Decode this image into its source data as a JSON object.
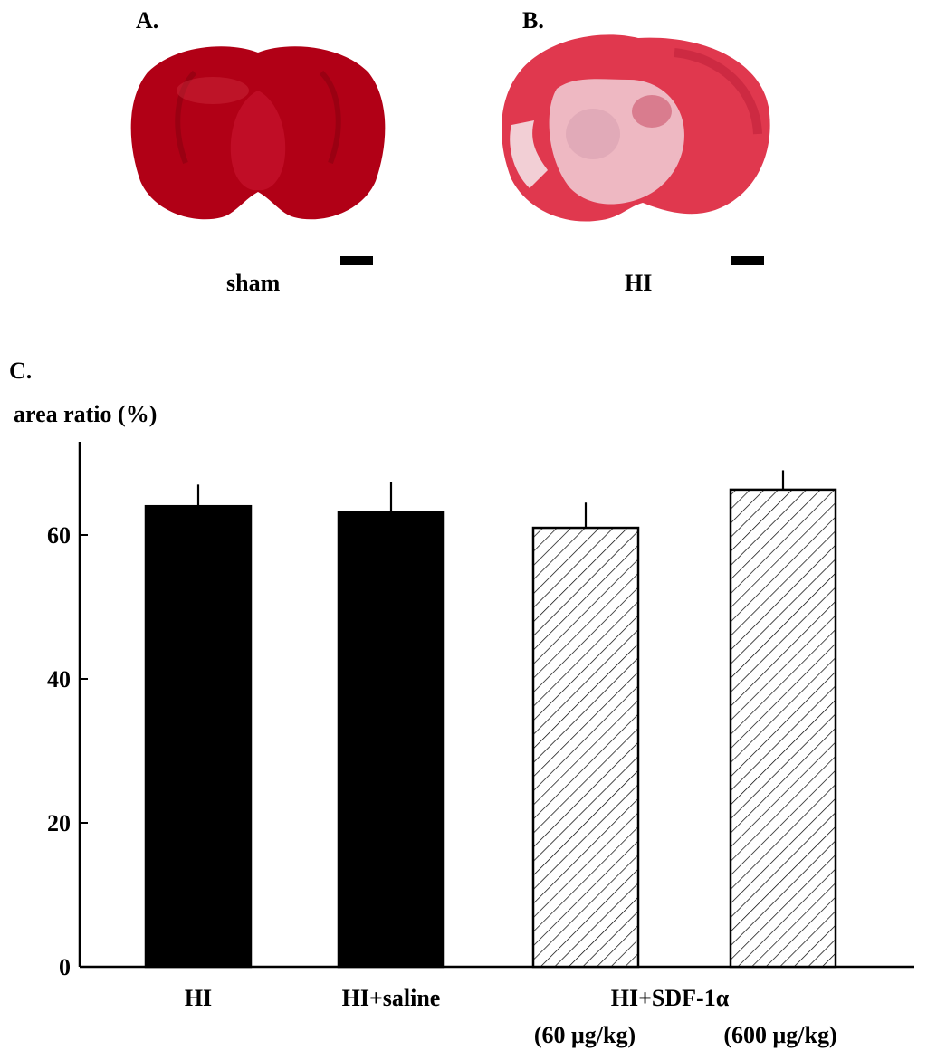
{
  "panels": {
    "a": {
      "letter": "A.",
      "caption": "sham"
    },
    "b": {
      "letter": "B.",
      "caption": "HI"
    },
    "c": {
      "letter": "C."
    }
  },
  "colors": {
    "sham_tissue": "#b10016",
    "hi_tissue": "#e0384e",
    "hi_infarct": "#efc6cf",
    "bar_solid": "#000000",
    "bar_hatched_fill": "#ffffff"
  },
  "chart_data": {
    "type": "bar",
    "ylabel": "area ratio (%)",
    "xlabel": "",
    "ylim": [
      0,
      70
    ],
    "yticks": [
      0,
      20,
      40,
      60
    ],
    "grid": false,
    "categories": [
      "HI",
      "HI+saline",
      "HI+SDF-1α (60 μg/kg)",
      "HI+SDF-1α (600 μg/kg)"
    ],
    "x_tick_labels": [
      {
        "text": "HI"
      },
      {
        "text": "HI+saline"
      },
      {
        "text": "HI+SDF-1α"
      },
      {
        "text": "(60 μg/kg)"
      },
      {
        "text": "(600 μg/kg)"
      }
    ],
    "values": [
      64,
      63.2,
      61,
      66.3
    ],
    "errors": [
      3,
      4.2,
      3.5,
      2.7
    ],
    "fill": [
      "solid",
      "solid",
      "hatched",
      "hatched"
    ]
  }
}
